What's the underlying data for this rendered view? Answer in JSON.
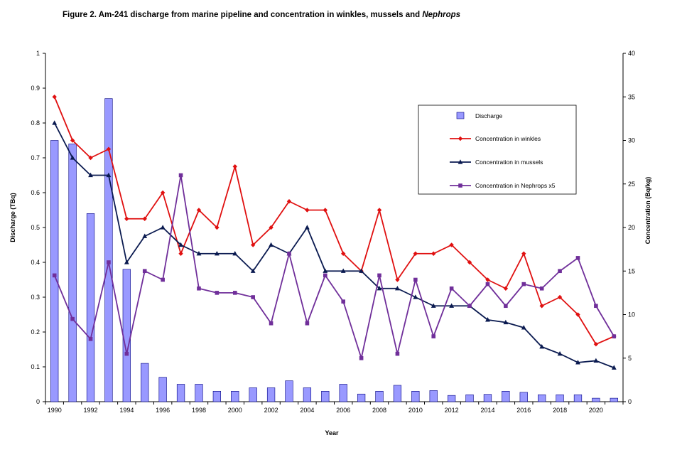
{
  "title": {
    "prefix": "Figure 2. Am-241 discharge from marine pipeline and concentration in winkles, mussels and ",
    "italic": "Nephrops"
  },
  "colors": {
    "discharge_fill": "#9999ff",
    "discharge_stroke": "#000080",
    "winkles": "#e01010",
    "mussels": "#0a1a50",
    "nephrops": "#702f9a"
  },
  "chart_data": {
    "type": "bar+line",
    "title": "Figure 2. Am-241 discharge from marine pipeline and concentration in winkles, mussels and Nephrops",
    "xlabel": "Year",
    "ylabel_left": "Discharge (TBq)",
    "ylabel_right": "Concentration (Bq/kg)",
    "ylim_left": [
      0,
      1
    ],
    "ylim_right": [
      0,
      40
    ],
    "left_ticks": [
      "0",
      "0.1",
      "0.2",
      "0.3",
      "0.4",
      "0.5",
      "0.6",
      "0.7",
      "0.8",
      "0.9",
      "1"
    ],
    "right_ticks": [
      "0",
      "5",
      "10",
      "15",
      "20",
      "25",
      "30",
      "35",
      "40"
    ],
    "x_tick_labels": [
      "1990",
      "1992",
      "1994",
      "1996",
      "1998",
      "2000",
      "2002",
      "2004",
      "2006",
      "2008",
      "2010",
      "2012",
      "2014",
      "2016",
      "2018",
      "2020"
    ],
    "years": [
      1990,
      1991,
      1992,
      1993,
      1994,
      1995,
      1996,
      1997,
      1998,
      1999,
      2000,
      2001,
      2002,
      2003,
      2004,
      2005,
      2006,
      2007,
      2008,
      2009,
      2010,
      2011,
      2012,
      2013,
      2014,
      2015,
      2016,
      2017,
      2018,
      2019,
      2020,
      2021
    ],
    "legend_position": "upper-right",
    "series": [
      {
        "name": "Discharge",
        "type": "bar",
        "axis": "left",
        "values": [
          0.75,
          0.74,
          0.54,
          0.87,
          0.38,
          0.11,
          0.07,
          0.05,
          0.05,
          0.03,
          0.03,
          0.04,
          0.04,
          0.06,
          0.04,
          0.03,
          0.05,
          0.022,
          0.03,
          0.047,
          0.03,
          0.032,
          0.018,
          0.02,
          0.021,
          0.03,
          0.027,
          0.02,
          0.02,
          0.02,
          0.01,
          0.01
        ]
      },
      {
        "name": "Concentration in winkles",
        "type": "line",
        "axis": "right",
        "marker": "diamond",
        "values": [
          35,
          30,
          28,
          29,
          21,
          21,
          24,
          17,
          22,
          20,
          27,
          18,
          20,
          23,
          22,
          22,
          17,
          15,
          22,
          14,
          17,
          17,
          18,
          16,
          14,
          13,
          17,
          11,
          12,
          10,
          6.6,
          7.5
        ]
      },
      {
        "name": "Concentration in mussels",
        "type": "line",
        "axis": "right",
        "marker": "triangle",
        "values": [
          32,
          28,
          26,
          26,
          16,
          19,
          20,
          18,
          17,
          17,
          17,
          15,
          18,
          17,
          20,
          15,
          15,
          15,
          13,
          13,
          12,
          11,
          11,
          11,
          9.4,
          9.1,
          8.5,
          6.3,
          5.5,
          4.5,
          4.7,
          3.9
        ]
      },
      {
        "name": "Concentration in Nephrops x5",
        "type": "line",
        "axis": "right",
        "marker": "square",
        "values": [
          14.5,
          9.5,
          7.2,
          16,
          5.5,
          15,
          14,
          26,
          13,
          12.5,
          12.5,
          12,
          9,
          17,
          9,
          14.5,
          11.5,
          5,
          14.5,
          5.5,
          14,
          7.5,
          13,
          11,
          13.5,
          11,
          13.5,
          13,
          15,
          16.5,
          11,
          7.5
        ]
      }
    ]
  }
}
